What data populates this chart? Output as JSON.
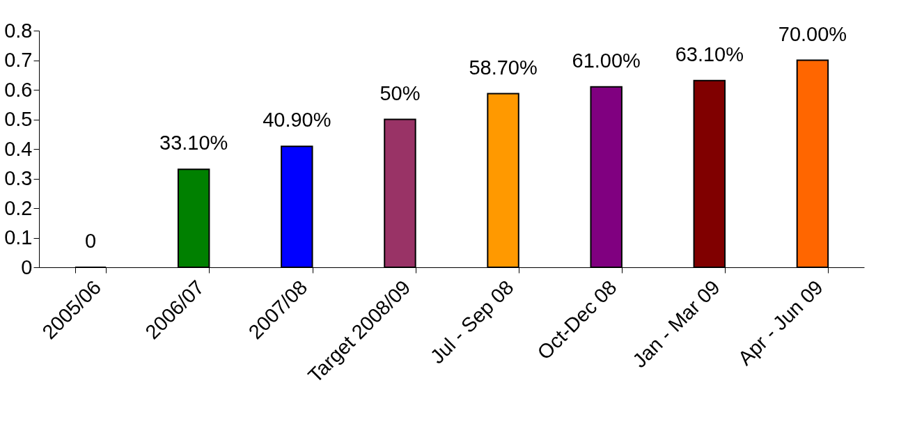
{
  "chart_data": {
    "type": "bar",
    "categories": [
      "2005/06",
      "2006/07",
      "2007/08",
      "Target 2008/09",
      "Jul - Sep 08",
      "Oct-Dec 08",
      "Jan - Mar 09",
      "Apr - Jun 09"
    ],
    "values": [
      0,
      0.331,
      0.409,
      0.5,
      0.587,
      0.61,
      0.631,
      0.7
    ],
    "colors": [
      "#000000",
      "#008000",
      "#0000ff",
      "#993366",
      "#ff9900",
      "#800080",
      "#800000",
      "#ff6600"
    ],
    "value_labels": [
      "0",
      "33.10%",
      "40.90%",
      "50%",
      "58.70%",
      "61.00%",
      "63.10%",
      "70.00%"
    ],
    "ylim": [
      0,
      0.8
    ],
    "yticks": [
      0,
      0.1,
      0.2,
      0.3,
      0.4,
      0.5,
      0.6,
      0.7,
      0.8
    ],
    "grid": false
  }
}
